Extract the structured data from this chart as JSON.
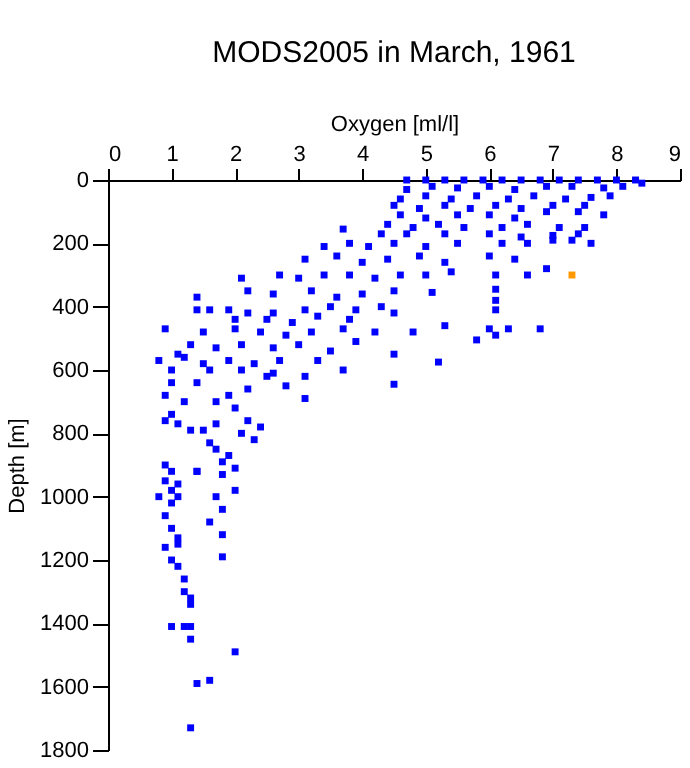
{
  "chart_data": {
    "type": "scatter",
    "title": "MODS2005 in March, 1961",
    "xlabel": "Oxygen [ml/l]",
    "ylabel": "Depth [m]",
    "xlim": [
      0,
      9
    ],
    "xticks": [
      0,
      1,
      2,
      3,
      4,
      5,
      6,
      7,
      8,
      9
    ],
    "ylim": [
      1800,
      0
    ],
    "yticks": [
      0,
      200,
      400,
      600,
      800,
      1000,
      1200,
      1400,
      1600,
      1800
    ],
    "grid": false,
    "legend": false,
    "marker": "square",
    "series": [
      {
        "color": "#0000ff",
        "x": [
          4.7,
          5.0,
          5.3,
          5.6,
          5.9,
          6.2,
          6.5,
          6.8,
          7.1,
          7.4,
          7.7,
          8.0,
          8.3,
          8.4,
          4.7,
          5.1,
          5.5,
          6.0,
          6.4,
          6.9,
          7.3,
          7.8,
          8.1,
          4.6,
          5.0,
          5.4,
          5.8,
          6.3,
          6.7,
          7.2,
          7.6,
          7.9,
          4.5,
          4.9,
          5.3,
          5.7,
          6.1,
          6.5,
          7.0,
          7.5,
          4.6,
          5.0,
          5.5,
          6.0,
          6.4,
          6.9,
          7.4,
          7.8,
          4.4,
          4.8,
          5.2,
          5.6,
          6.2,
          6.6,
          7.1,
          7.5,
          3.7,
          4.3,
          4.7,
          5.3,
          6.0,
          6.5,
          7.0,
          7.4,
          3.4,
          3.8,
          4.1,
          4.5,
          5.0,
          5.5,
          6.2,
          6.6,
          7.0,
          7.6,
          7.3,
          3.1,
          3.6,
          4.0,
          4.4,
          4.9,
          5.3,
          6.0,
          6.4,
          2.7,
          3.0,
          3.4,
          3.8,
          4.2,
          4.6,
          5.0,
          5.4,
          6.1,
          6.6,
          6.9,
          2.1,
          2.2,
          2.6,
          3.2,
          3.6,
          4.0,
          4.5,
          5.1,
          6.1,
          1.4,
          1.9,
          2.2,
          2.6,
          3.1,
          3.5,
          3.9,
          4.3,
          6.1,
          6.1,
          1.4,
          1.6,
          2.0,
          2.5,
          2.9,
          3.3,
          3.8,
          4.5,
          0.9,
          1.5,
          2.0,
          2.4,
          2.8,
          3.2,
          3.7,
          4.2,
          4.8,
          5.3,
          6.0,
          6.3,
          6.8,
          6.1,
          5.8,
          1.3,
          1.7,
          2.1,
          2.6,
          3.0,
          3.5,
          3.9,
          4.5,
          5.2,
          1.1,
          0.8,
          1.2,
          1.5,
          1.9,
          2.3,
          2.7,
          3.3,
          3.7,
          1.0,
          1.6,
          2.1,
          2.6,
          3.1,
          1.0,
          1.4,
          2.5,
          2.8,
          4.5,
          3.1,
          0.9,
          1.2,
          1.7,
          2.0,
          1.9,
          2.2,
          1.0,
          1.1,
          0.9,
          1.3,
          2.2,
          2.4,
          2.1,
          2.3,
          1.5,
          1.7,
          1.6,
          1.7,
          1.9,
          1.4,
          1.8,
          0.9,
          1.0,
          1.8,
          2.0,
          0.9,
          1.0,
          1.1,
          0.8,
          1.0,
          1.1,
          1.4,
          1.7,
          1.8,
          2.0,
          1.6,
          0.9,
          1.0,
          1.1,
          1.1,
          1.8,
          0.9,
          1.0,
          1.1,
          1.8,
          1.2,
          1.2,
          1.3,
          1.3,
          1.0,
          1.2,
          1.3,
          1.3,
          2.0,
          1.6,
          1.4,
          1.3
        ],
        "values": [
          0,
          0,
          0,
          0,
          0,
          0,
          0,
          0,
          0,
          0,
          0,
          0,
          0,
          10,
          30,
          20,
          25,
          20,
          30,
          20,
          20,
          25,
          20,
          60,
          50,
          60,
          50,
          60,
          50,
          60,
          55,
          50,
          80,
          90,
          80,
          90,
          80,
          90,
          80,
          80,
          110,
          120,
          110,
          110,
          120,
          100,
          100,
          110,
          140,
          150,
          140,
          150,
          150,
          140,
          150,
          150,
          155,
          170,
          170,
          170,
          170,
          180,
          175,
          170,
          210,
          200,
          210,
          200,
          210,
          200,
          200,
          200,
          190,
          200,
          190,
          250,
          240,
          260,
          250,
          240,
          260,
          240,
          250,
          300,
          310,
          300,
          300,
          310,
          300,
          300,
          290,
          300,
          300,
          280,
          310,
          350,
          360,
          350,
          370,
          360,
          350,
          355,
          345,
          370,
          410,
          420,
          420,
          410,
          400,
          410,
          400,
          380,
          410,
          410,
          410,
          440,
          440,
          450,
          430,
          440,
          420,
          470,
          480,
          470,
          480,
          490,
          480,
          470,
          480,
          480,
          460,
          470,
          470,
          470,
          490,
          505,
          520,
          530,
          520,
          530,
          520,
          540,
          510,
          550,
          575,
          550,
          570,
          560,
          580,
          570,
          580,
          570,
          570,
          600,
          600,
          600,
          600,
          610,
          620,
          640,
          640,
          620,
          650,
          645,
          690,
          680,
          700,
          700,
          720,
          680,
          660,
          740,
          770,
          760,
          790,
          760,
          780,
          800,
          820,
          790,
          770,
          830,
          850,
          870,
          920,
          930,
          900,
          920,
          890,
          910,
          950,
          980,
          960,
          1000,
          1020,
          1000,
          920,
          1000,
          1040,
          980,
          1080,
          1060,
          1100,
          1130,
          1150,
          1120,
          1160,
          1200,
          1220,
          1190,
          1260,
          1300,
          1320,
          1340,
          1410,
          1410,
          1450,
          1410,
          1490,
          1580,
          1590,
          1730
        ]
      },
      {
        "color": "#ff9900",
        "x": [
          7.3
        ],
        "values": [
          300
        ]
      }
    ]
  }
}
